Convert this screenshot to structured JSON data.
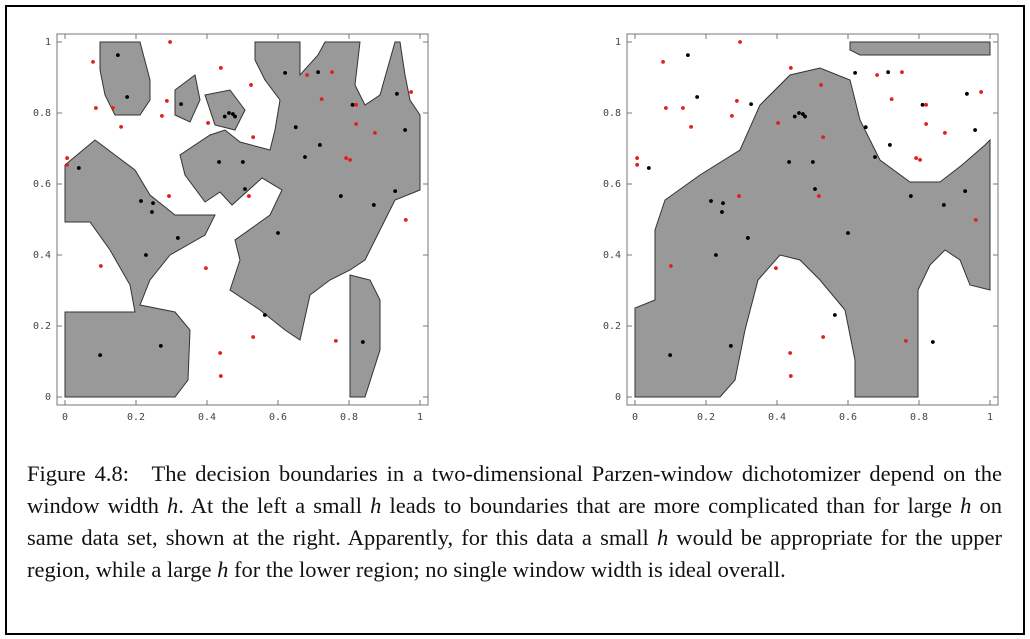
{
  "chart_data": [
    {
      "type": "scatter",
      "xlim": [
        0,
        1
      ],
      "ylim": [
        0,
        1
      ],
      "xticks": [
        0,
        0.2,
        0.4,
        0.6,
        0.8,
        1
      ],
      "yticks": [
        0,
        0.2,
        0.4,
        0.6,
        0.8,
        1
      ],
      "series": [
        {
          "color": "#000000",
          "x": [
            0.149,
            0.175,
            0.327,
            0.45,
            0.462,
            0.473,
            0.479,
            0.62,
            0.713,
            0.81,
            0.935,
            0.958,
            0.65,
            0.718,
            0.676,
            0.434,
            0.501,
            0.507,
            0.039,
            0.214,
            0.248,
            0.245,
            0.318,
            0.228,
            0.6,
            0.777,
            0.87,
            0.93,
            0.563,
            0.099,
            0.27,
            0.839
          ],
          "y": [
            0.963,
            0.845,
            0.825,
            0.79,
            0.8,
            0.797,
            0.79,
            0.913,
            0.915,
            0.823,
            0.854,
            0.752,
            0.76,
            0.71,
            0.676,
            0.662,
            0.662,
            0.586,
            0.645,
            0.552,
            0.546,
            0.521,
            0.448,
            0.4,
            0.462,
            0.566,
            0.541,
            0.58,
            0.231,
            0.118,
            0.144,
            0.155
          ]
        },
        {
          "color": "#e0201b",
          "x": [
            0.296,
            0.079,
            0.087,
            0.135,
            0.158,
            0.287,
            0.273,
            0.439,
            0.524,
            0.403,
            0.53,
            0.518,
            0.682,
            0.752,
            0.723,
            0.82,
            0.975,
            0.82,
            0.873,
            0.792,
            0.803,
            0.006,
            0.006,
            0.293,
            0.96,
            0.101,
            0.397,
            0.763,
            0.53,
            0.437,
            0.439
          ],
          "y": [
            1.0,
            0.944,
            0.814,
            0.814,
            0.761,
            0.834,
            0.792,
            0.927,
            0.879,
            0.772,
            0.732,
            0.566,
            0.907,
            0.915,
            0.839,
            0.823,
            0.859,
            0.769,
            0.744,
            0.673,
            0.668,
            0.673,
            0.654,
            0.566,
            0.499,
            0.369,
            0.363,
            0.158,
            0.169,
            0.124,
            0.059
          ]
        }
      ]
    },
    {
      "type": "scatter",
      "xlim": [
        0,
        1
      ],
      "ylim": [
        0,
        1
      ],
      "xticks": [
        0,
        0.2,
        0.4,
        0.6,
        0.8,
        1
      ],
      "yticks": [
        0,
        0.2,
        0.4,
        0.6,
        0.8,
        1
      ],
      "series": [
        {
          "color": "#000000",
          "x": [
            0.149,
            0.175,
            0.327,
            0.45,
            0.462,
            0.473,
            0.479,
            0.62,
            0.713,
            0.81,
            0.935,
            0.958,
            0.65,
            0.718,
            0.676,
            0.434,
            0.501,
            0.507,
            0.039,
            0.214,
            0.248,
            0.245,
            0.318,
            0.228,
            0.6,
            0.777,
            0.87,
            0.93,
            0.563,
            0.099,
            0.27,
            0.839
          ],
          "y": [
            0.963,
            0.845,
            0.825,
            0.79,
            0.8,
            0.797,
            0.79,
            0.913,
            0.915,
            0.823,
            0.854,
            0.752,
            0.76,
            0.71,
            0.676,
            0.662,
            0.662,
            0.586,
            0.645,
            0.552,
            0.546,
            0.521,
            0.448,
            0.4,
            0.462,
            0.566,
            0.541,
            0.58,
            0.231,
            0.118,
            0.144,
            0.155
          ]
        },
        {
          "color": "#e0201b",
          "x": [
            0.296,
            0.079,
            0.087,
            0.135,
            0.158,
            0.287,
            0.273,
            0.439,
            0.524,
            0.403,
            0.53,
            0.518,
            0.682,
            0.752,
            0.723,
            0.82,
            0.975,
            0.82,
            0.873,
            0.792,
            0.803,
            0.006,
            0.006,
            0.293,
            0.96,
            0.101,
            0.397,
            0.763,
            0.53,
            0.437,
            0.439
          ],
          "y": [
            1.0,
            0.944,
            0.814,
            0.814,
            0.761,
            0.834,
            0.792,
            0.927,
            0.879,
            0.772,
            0.732,
            0.566,
            0.907,
            0.915,
            0.839,
            0.823,
            0.859,
            0.769,
            0.744,
            0.673,
            0.668,
            0.673,
            0.654,
            0.566,
            0.499,
            0.369,
            0.363,
            0.158,
            0.169,
            0.124,
            0.059
          ]
        }
      ]
    }
  ],
  "caption": [
    "Figure 4.8: The decision boundaries in a two-dimensional Parzen-window di­chotomizer depend on the window width ",
    "h",
    ". At the left a small ",
    "h",
    " leads to boundaries that are more complicated than for large ",
    "h",
    " on same data set, shown at the right. Apparently, for this data a small ",
    "h",
    " would be appropriate for the upper region, while a large ",
    "h",
    " for the lower region; no single window width is ideal overall."
  ]
}
